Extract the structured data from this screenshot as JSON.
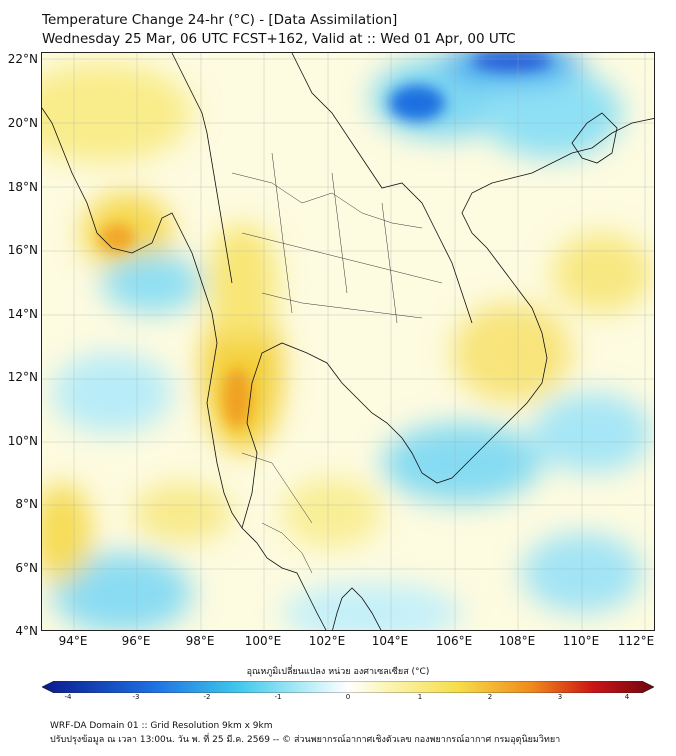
{
  "header": {
    "title": "Temperature Change 24-hr (°C) - [Data Assimilation]",
    "subtitle": "Wednesday 25 Mar, 06 UTC FCST+162, Valid at :: Wed 01 Apr, 00 UTC"
  },
  "map": {
    "lat_labels": [
      "22°N",
      "20°N",
      "18°N",
      "16°N",
      "14°N",
      "12°N",
      "10°N",
      "8°N",
      "6°N",
      "4°N"
    ],
    "lon_labels": [
      "94°E",
      "96°E",
      "98°E",
      "100°E",
      "102°E",
      "104°E",
      "106°E",
      "108°E",
      "110°E",
      "112°E"
    ],
    "lat_range": [
      4,
      22
    ],
    "lon_range": [
      93,
      112.3
    ]
  },
  "colorbar": {
    "title": "อุณหภูมิเปลี่ยนแปลง หน่วย องศาเซลเซียส (°C)",
    "ticks": [
      "-4",
      "-3",
      "-2",
      "-1",
      "0",
      "1",
      "2",
      "3",
      "4"
    ],
    "range": [
      -4,
      4
    ],
    "colors": {
      "deep_blue": "#0a1a8c",
      "blue": "#1e6fe0",
      "cyan": "#3fc8ec",
      "light_cyan": "#bfeff8",
      "white": "#ffffff",
      "light_yellow": "#fbf6b8",
      "yellow": "#f6dd4a",
      "orange": "#f08a1c",
      "red": "#cc1515",
      "dark_red": "#6e0610"
    }
  },
  "footer": {
    "line1": "WRF-DA Domain 01 :: Grid Resolution 9km x 9km",
    "line2": "ปรับปรุงข้อมูล ณ เวลา 13:00น. วัน พ. ที่ 25 มี.ค. 2569 -- © ส่วนพยากรณ์อากาศเชิงตัวเลข กองพยากรณ์อากาศ กรมอุตุนิยมวิทยา"
  }
}
